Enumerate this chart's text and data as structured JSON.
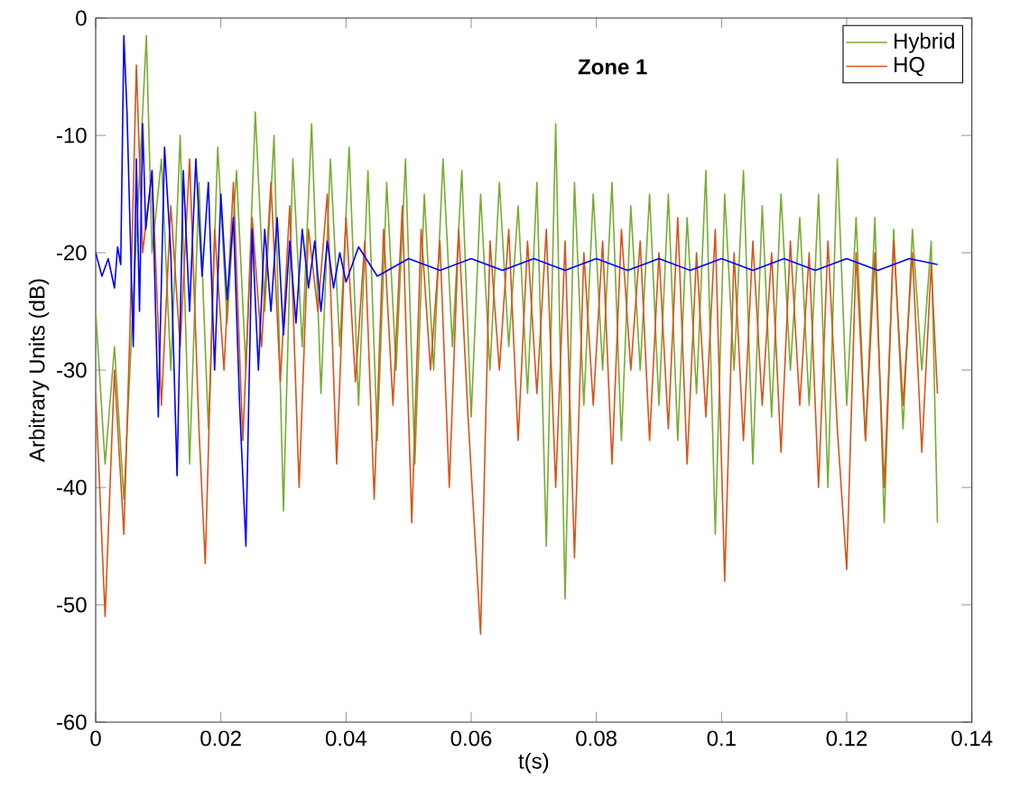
{
  "chart_data": {
    "type": "line",
    "title": "Zone 1",
    "xlabel": "t(s)",
    "ylabel": "Arbitrary Units (dB)",
    "xlim": [
      0,
      0.14
    ],
    "ylim": [
      -60,
      0
    ],
    "xticks": [
      0,
      0.02,
      0.04,
      0.06,
      0.08,
      0.1,
      0.12,
      0.14
    ],
    "yticks": [
      -60,
      -50,
      -40,
      -30,
      -20,
      -10,
      0
    ],
    "grid": false,
    "legend": "top right",
    "series": [
      {
        "name": "Hybrid",
        "color": "#77ac30",
        "x": [
          0,
          0.0015,
          0.003,
          0.0045,
          0.006,
          0.0075,
          0.0081,
          0.009,
          0.0105,
          0.012,
          0.0135,
          0.015,
          0.0165,
          0.018,
          0.0195,
          0.021,
          0.0225,
          0.024,
          0.0255,
          0.027,
          0.0285,
          0.03,
          0.0315,
          0.033,
          0.0345,
          0.036,
          0.0375,
          0.039,
          0.0405,
          0.042,
          0.0435,
          0.045,
          0.0465,
          0.048,
          0.0495,
          0.051,
          0.0525,
          0.054,
          0.0555,
          0.057,
          0.0585,
          0.06,
          0.0615,
          0.063,
          0.0645,
          0.066,
          0.0675,
          0.069,
          0.0705,
          0.072,
          0.0735,
          0.075,
          0.0765,
          0.078,
          0.0795,
          0.081,
          0.0825,
          0.084,
          0.0855,
          0.087,
          0.0885,
          0.09,
          0.0915,
          0.093,
          0.0945,
          0.096,
          0.0975,
          0.099,
          0.1005,
          0.102,
          0.1035,
          0.105,
          0.1065,
          0.108,
          0.1095,
          0.111,
          0.1125,
          0.114,
          0.1155,
          0.117,
          0.1185,
          0.12,
          0.1215,
          0.123,
          0.1245,
          0.126,
          0.1275,
          0.129,
          0.1305,
          0.132,
          0.1335,
          0.1345
        ],
        "values": [
          -25,
          -38,
          -28,
          -41,
          -24,
          -8,
          -1.5,
          -20,
          -12,
          -30,
          -10,
          -38,
          -14,
          -35,
          -11,
          -26,
          -13,
          -30,
          -8,
          -25,
          -10,
          -42,
          -12,
          -28,
          -9,
          -32,
          -12,
          -28,
          -11,
          -33,
          -13,
          -36,
          -14,
          -30,
          -12,
          -38,
          -15,
          -30,
          -12,
          -28,
          -13,
          -34,
          -15,
          -30,
          -14,
          -28,
          -16,
          -32,
          -14,
          -45,
          -9,
          -49.5,
          -14,
          -33,
          -15,
          -30,
          -14,
          -36,
          -16,
          -30,
          -15,
          -33,
          -15,
          -36,
          -17,
          -32,
          -13,
          -44,
          -15,
          -30,
          -13,
          -38,
          -16,
          -34,
          -15,
          -30,
          -17,
          -33,
          -15,
          -40,
          -12,
          -33,
          -17,
          -36,
          -17,
          -43,
          -18,
          -35,
          -18,
          -30,
          -19,
          -43
        ]
      },
      {
        "name": "HQ",
        "color": "#d95319",
        "x": [
          0,
          0.0015,
          0.003,
          0.0045,
          0.0055,
          0.0065,
          0.0075,
          0.009,
          0.0105,
          0.012,
          0.0135,
          0.015,
          0.0165,
          0.0175,
          0.019,
          0.0205,
          0.022,
          0.0235,
          0.025,
          0.0265,
          0.028,
          0.0295,
          0.031,
          0.0325,
          0.034,
          0.0355,
          0.037,
          0.0385,
          0.04,
          0.0415,
          0.043,
          0.0445,
          0.046,
          0.0475,
          0.049,
          0.0505,
          0.052,
          0.0535,
          0.055,
          0.0565,
          0.058,
          0.0595,
          0.0615,
          0.063,
          0.0645,
          0.066,
          0.0675,
          0.069,
          0.0705,
          0.072,
          0.0735,
          0.075,
          0.0765,
          0.078,
          0.0795,
          0.081,
          0.0825,
          0.084,
          0.0855,
          0.087,
          0.0885,
          0.09,
          0.0915,
          0.093,
          0.0945,
          0.096,
          0.0975,
          0.099,
          0.1005,
          0.102,
          0.1035,
          0.105,
          0.1065,
          0.108,
          0.1095,
          0.111,
          0.1125,
          0.114,
          0.1155,
          0.117,
          0.1185,
          0.12,
          0.1215,
          0.123,
          0.1245,
          0.126,
          0.1275,
          0.129,
          0.1305,
          0.132,
          0.1335,
          0.1345
        ],
        "values": [
          -32,
          -51,
          -30,
          -44,
          -26,
          -4,
          -20,
          -13,
          -33,
          -16,
          -28,
          -12,
          -35,
          -46.5,
          -18,
          -30,
          -14,
          -36,
          -17,
          -28,
          -14,
          -31,
          -16,
          -40,
          -18,
          -25,
          -15,
          -38,
          -17,
          -31,
          -19,
          -41,
          -18,
          -33,
          -16,
          -43,
          -18,
          -30,
          -19,
          -40,
          -18,
          -34,
          -52.5,
          -19,
          -30,
          -18,
          -36,
          -19,
          -32,
          -18,
          -40,
          -19,
          -46,
          -20,
          -33,
          -19,
          -38,
          -18,
          -30,
          -19,
          -36,
          -20,
          -35,
          -17,
          -38,
          -20,
          -34,
          -18,
          -48,
          -20,
          -36,
          -19,
          -33,
          -20,
          -37,
          -19,
          -33,
          -20,
          -40,
          -19,
          -35,
          -47,
          -20,
          -36,
          -20,
          -40,
          -19,
          -33,
          -20,
          -37,
          -21,
          -32
        ]
      },
      {
        "color": "#0000ff",
        "x": [
          0,
          0.001,
          0.002,
          0.003,
          0.0035,
          0.004,
          0.0045,
          0.005,
          0.0055,
          0.006,
          0.0065,
          0.007,
          0.0075,
          0.008,
          0.009,
          0.01,
          0.011,
          0.012,
          0.013,
          0.014,
          0.015,
          0.016,
          0.017,
          0.018,
          0.019,
          0.02,
          0.021,
          0.022,
          0.023,
          0.024,
          0.025,
          0.026,
          0.027,
          0.028,
          0.029,
          0.03,
          0.031,
          0.032,
          0.033,
          0.034,
          0.035,
          0.036,
          0.037,
          0.038,
          0.039,
          0.04,
          0.042,
          0.045,
          0.05,
          0.055,
          0.06,
          0.065,
          0.07,
          0.075,
          0.08,
          0.085,
          0.09,
          0.095,
          0.1,
          0.105,
          0.11,
          0.115,
          0.12,
          0.125,
          0.13,
          0.1345
        ],
        "values": [
          -20,
          -22,
          -20.5,
          -23,
          -19.5,
          -21,
          -1.5,
          -8,
          -18,
          -28,
          -12,
          -25,
          -9,
          -18,
          -13,
          -34,
          -11,
          -20,
          -39,
          -13,
          -25,
          -12,
          -22,
          -14,
          -30,
          -15,
          -24,
          -17,
          -33,
          -45,
          -18,
          -30,
          -18,
          -25,
          -17,
          -27,
          -19,
          -26,
          -18,
          -23,
          -19,
          -25,
          -19,
          -23,
          -20,
          -22.5,
          -19.5,
          -22,
          -20.5,
          -21.5,
          -20.5,
          -21.5,
          -20.5,
          -21.5,
          -20.5,
          -21.5,
          -20.5,
          -21.5,
          -20.5,
          -21.5,
          -20.5,
          -21.5,
          -20.5,
          -21.5,
          -20.5,
          -21
        ]
      }
    ]
  }
}
